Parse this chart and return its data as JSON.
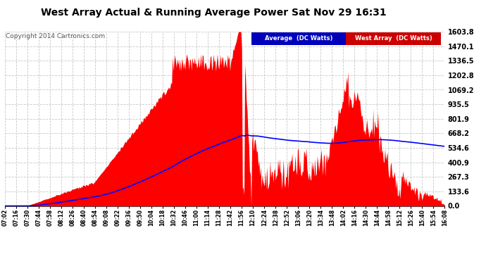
{
  "title": "West Array Actual & Running Average Power Sat Nov 29 16:31",
  "copyright": "Copyright 2014 Cartronics.com",
  "yticks": [
    0.0,
    133.6,
    267.3,
    400.9,
    534.6,
    668.2,
    801.9,
    935.5,
    1069.2,
    1202.8,
    1336.5,
    1470.1,
    1603.8
  ],
  "ymax": 1603.8,
  "fill_color": "#ff0000",
  "line_color": "#0000ff",
  "legend_avg_bg": "#0000bb",
  "legend_avg_text": "Average  (DC Watts)",
  "legend_west_bg": "#cc0000",
  "legend_west_text": "West Array  (DC Watts)",
  "xtick_labels": [
    "07:02",
    "07:16",
    "07:30",
    "07:44",
    "07:58",
    "08:12",
    "08:26",
    "08:40",
    "08:54",
    "09:08",
    "09:22",
    "09:36",
    "09:50",
    "10:04",
    "10:18",
    "10:32",
    "10:46",
    "11:00",
    "11:14",
    "11:28",
    "11:42",
    "11:56",
    "12:10",
    "12:24",
    "12:38",
    "12:52",
    "13:06",
    "13:20",
    "13:34",
    "13:48",
    "14:02",
    "14:16",
    "14:30",
    "14:44",
    "14:58",
    "15:12",
    "15:26",
    "15:40",
    "15:54",
    "16:08"
  ],
  "num_points": 560
}
